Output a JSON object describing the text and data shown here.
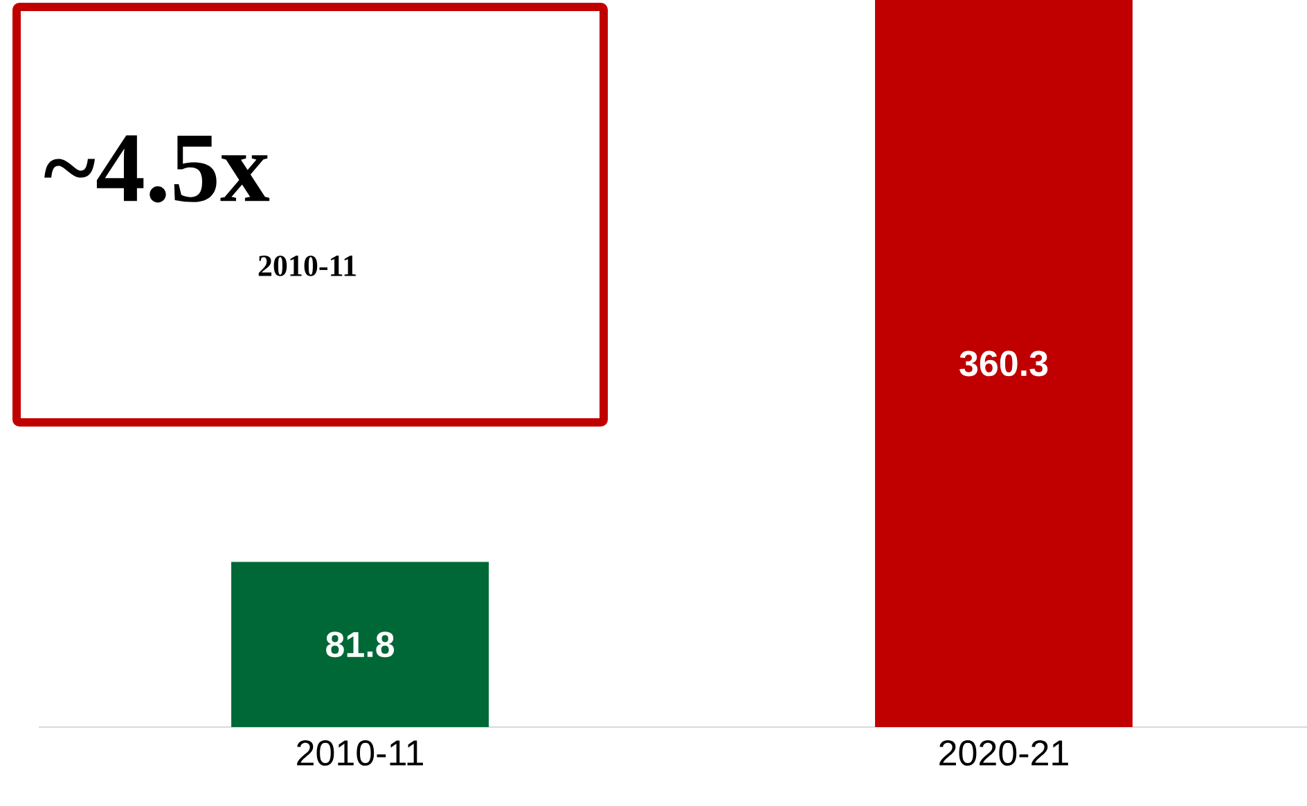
{
  "chart_data": {
    "type": "bar",
    "categories": [
      "2010-11",
      "2020-21"
    ],
    "values": [
      81.8,
      360.3
    ],
    "colors": [
      "#006837",
      "#c00000"
    ],
    "data_labels": true,
    "annotations": [
      "~4.5x",
      "2010-11"
    ]
  }
}
